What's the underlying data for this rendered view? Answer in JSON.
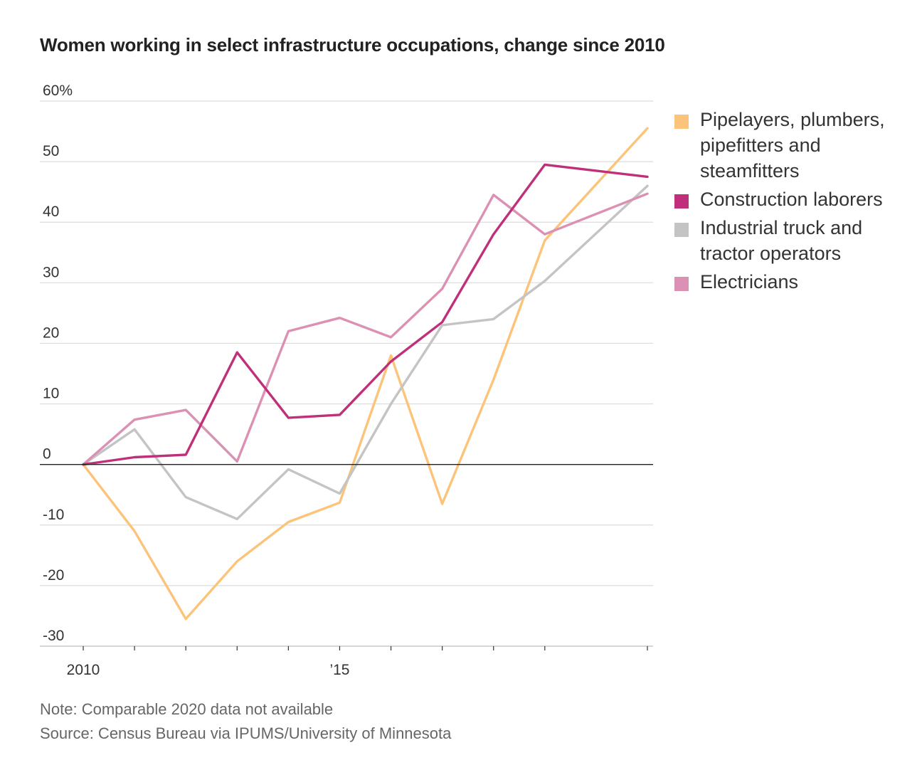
{
  "header": {
    "title": "Women working in select infrastructure occupations, change since 2010"
  },
  "footer": {
    "note": "Note: Comparable 2020 data not available",
    "source": "Source: Census Bureau via IPUMS/University of Minnesota"
  },
  "chart_data": {
    "type": "line",
    "title": "Women working in select infrastructure occupations, change since 2010",
    "xlabel": "",
    "ylabel": "",
    "x": [
      2010,
      2011,
      2012,
      2013,
      2014,
      2015,
      2016,
      2017,
      2018,
      2019,
      2021
    ],
    "xlim": [
      2010,
      2021
    ],
    "ylim": [
      -30,
      60
    ],
    "y_ticks": [
      {
        "value": 60,
        "label": "60%"
      },
      {
        "value": 50,
        "label": "50"
      },
      {
        "value": 40,
        "label": "40"
      },
      {
        "value": 30,
        "label": "30"
      },
      {
        "value": 20,
        "label": "20"
      },
      {
        "value": 10,
        "label": "10"
      },
      {
        "value": 0,
        "label": "0"
      },
      {
        "value": -10,
        "label": "-10"
      },
      {
        "value": -20,
        "label": "-20"
      },
      {
        "value": -30,
        "label": "-30"
      }
    ],
    "x_tick_positions": [
      2010,
      2011,
      2012,
      2013,
      2014,
      2015,
      2016,
      2017,
      2018,
      2019,
      2021
    ],
    "x_tick_labels": [
      {
        "value": 2010,
        "label": "2010"
      },
      {
        "value": 2015,
        "label": "’15"
      }
    ],
    "grid": true,
    "legend_position": "right",
    "series": [
      {
        "name": "Pipelayers, plumbers, pipefitters and steamfitters",
        "color": "#fcc47a",
        "values": [
          0,
          -11,
          -25.5,
          -16,
          -9.5,
          -6.3,
          18,
          -6.5,
          14,
          37,
          55.5
        ]
      },
      {
        "name": "Industrial truck and tractor operators",
        "color": "#c4c4c4",
        "values": [
          0,
          5.8,
          -5.4,
          -9,
          -0.8,
          -4.8,
          10,
          23,
          24,
          30.3,
          46
        ]
      },
      {
        "name": "Electricians",
        "color": "#dc91b4",
        "values": [
          0,
          7.4,
          9,
          0.5,
          22,
          24.2,
          21,
          29,
          44.5,
          38,
          44.7
        ]
      },
      {
        "name": "Construction laborers",
        "color": "#c0307a",
        "values": [
          0,
          1.2,
          1.6,
          18.5,
          7.7,
          8.2,
          17,
          23.5,
          38,
          49.5,
          47.5
        ]
      }
    ]
  },
  "legend": {
    "items": [
      {
        "label": "Pipelayers, plumbers, pipefitters and steamfitters",
        "color": "#fcc47a"
      },
      {
        "label": "Construction laborers",
        "color": "#c0307a"
      },
      {
        "label": "Industrial truck and tractor operators",
        "color": "#c4c4c4"
      },
      {
        "label": "Electricians",
        "color": "#dc91b4"
      }
    ]
  }
}
